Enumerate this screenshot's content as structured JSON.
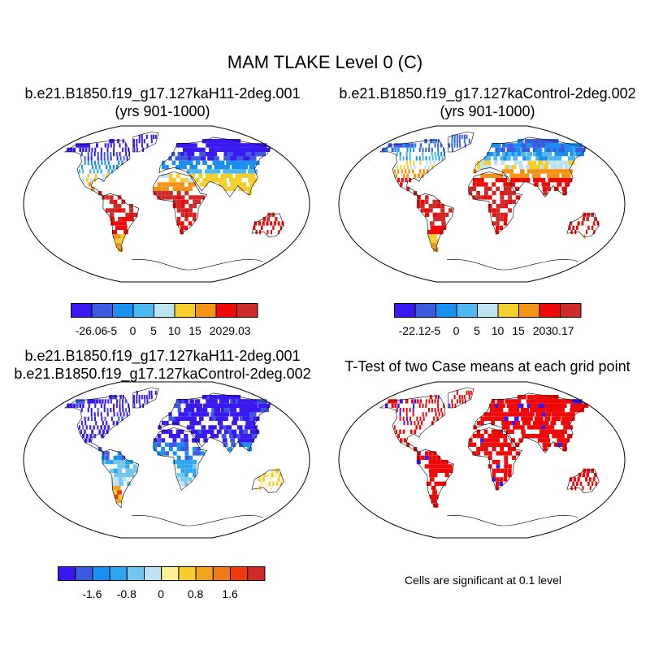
{
  "figure_title": "MAM TLAKE Level 0 (C)",
  "panels": [
    {
      "id": "case1",
      "title_line1": "b.e21.B1850.f19_g17.127kaH11-2deg.001",
      "title_line2": "(yrs 901-1000)"
    },
    {
      "id": "case2",
      "title_line1": "b.e21.B1850.f19_g17.127kaControl-2deg.002",
      "title_line2": "(yrs 901-1000)"
    },
    {
      "id": "diff",
      "title_line1": "b.e21.B1850.f19_g17.127kaH11-2deg.001",
      "title_line2": "b.e21.B1850.f19_g17.127kaControl-2deg.002"
    },
    {
      "id": "ttest",
      "title_line1": "T-Test of two Case means at each grid point",
      "title_line2": ""
    }
  ],
  "colorbars": {
    "case1": {
      "colors": [
        "#3a18f0",
        "#3d5ae0",
        "#1a8ff0",
        "#4db8ef",
        "#bfe3f2",
        "#f5cd2c",
        "#f29317",
        "#ef0a0a",
        "#cd2a2a"
      ],
      "labels": [
        "-26.06",
        "-5",
        "0",
        "5",
        "10",
        "15",
        "20",
        "29.03"
      ]
    },
    "case2": {
      "colors": [
        "#3a18f0",
        "#3d5ae0",
        "#1a8ff0",
        "#4db8ef",
        "#bfe3f2",
        "#f5cd2c",
        "#f29317",
        "#ef0a0a",
        "#cd2a2a"
      ],
      "labels": [
        "-22.12",
        "-5",
        "0",
        "5",
        "10",
        "15",
        "20",
        "30.17"
      ]
    },
    "diff": {
      "colors": [
        "#3a18f0",
        "#3d5ae0",
        "#1a8ff0",
        "#2da6ef",
        "#73c7ef",
        "#bfe3f2",
        "#fff19a",
        "#f5cd2c",
        "#f2a51c",
        "#f07a1a",
        "#ef3a0a",
        "#cd2a2a"
      ],
      "labels": [
        "-1.6",
        "-0.8",
        "0",
        "0.8",
        "1.6"
      ]
    }
  },
  "significance_note": "Cells are significant at 0.1 level",
  "colors": {
    "ttest_red": "#ef0a0a",
    "ttest_blue": "#3a18f0"
  }
}
